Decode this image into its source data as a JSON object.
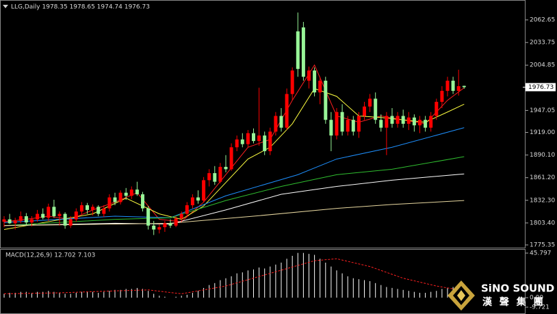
{
  "chart_data": [
    {
      "type": "candlestick",
      "title": "LLG,Daily  1978.35 1978.65 1974.74 1976.73",
      "up_color": "#ff0000",
      "down_color": "#98f598",
      "ylim": [
        1771,
        2088
      ],
      "yticks": [
        2062.65,
        2033.75,
        2004.85,
        1947.05,
        {
          "value": 1919,
          "label": "1919.00"
        },
        {
          "value": 1890.1,
          "label": "1890.10"
        },
        {
          "value": 1861.2,
          "label": "1861.20"
        },
        {
          "value": 1832.3,
          "label": "1832.30"
        },
        {
          "value": 1803.4,
          "label": "1803.40"
        },
        1775.35
      ],
      "last_price": 1976.73,
      "ohlc": {
        "open": [
          1805,
          1808,
          1803,
          1806,
          1812,
          1804,
          1808,
          1815,
          1810,
          1824,
          1812,
          1815,
          1800,
          1808,
          1818,
          1826,
          1820,
          1824,
          1815,
          1822,
          1836,
          1830,
          1842,
          1838,
          1846,
          1840,
          1822,
          1800,
          1795,
          1798,
          1803,
          1800,
          1809,
          1815,
          1826,
          1836,
          1832,
          1858,
          1867,
          1856,
          1875,
          1872,
          1900,
          1910,
          1904,
          1918,
          1908,
          1915,
          1895,
          1920,
          1940,
          1925,
          1968,
          2048,
          2053,
          1985,
          1998,
          1970,
          1985,
          1935,
          1915,
          1945,
          1920,
          1935,
          1920,
          1940,
          1952,
          1962,
          1935,
          1925,
          1940,
          1930,
          1940,
          1930,
          1938,
          1928,
          1935,
          1925,
          1940,
          1958,
          1972,
          1985,
          1972,
          1978.35
        ],
        "high": [
          1812,
          1815,
          1810,
          1818,
          1816,
          1812,
          1820,
          1822,
          1828,
          1833,
          1818,
          1817,
          1812,
          1822,
          1830,
          1829,
          1827,
          1826,
          1826,
          1840,
          1842,
          1845,
          1848,
          1850,
          1856,
          1843,
          1825,
          1806,
          1802,
          1806,
          1808,
          1812,
          1818,
          1830,
          1840,
          1845,
          1862,
          1872,
          1876,
          1880,
          1890,
          1905,
          1915,
          1918,
          1922,
          1924,
          1976,
          1920,
          1925,
          1945,
          1950,
          1975,
          2002,
          2072,
          2060,
          2003,
          2002,
          1990,
          1990,
          1945,
          1950,
          1955,
          1940,
          1940,
          1945,
          1958,
          1968,
          1970,
          1942,
          1945,
          1950,
          1945,
          1948,
          1945,
          1942,
          1940,
          1940,
          1945,
          1962,
          1978,
          1990,
          1990,
          1999,
          1978.65
        ],
        "low": [
          1798,
          1802,
          1795,
          1803,
          1800,
          1799,
          1805,
          1808,
          1806,
          1810,
          1800,
          1796,
          1797,
          1805,
          1814,
          1815,
          1813,
          1812,
          1811,
          1818,
          1826,
          1827,
          1833,
          1834,
          1838,
          1818,
          1795,
          1788,
          1790,
          1792,
          1797,
          1798,
          1805,
          1811,
          1822,
          1828,
          1830,
          1850,
          1852,
          1854,
          1868,
          1870,
          1895,
          1900,
          1900,
          1905,
          1902,
          1890,
          1890,
          1915,
          1920,
          1922,
          1960,
          1990,
          1985,
          1975,
          1965,
          1955,
          1930,
          1895,
          1910,
          1915,
          1915,
          1915,
          1912,
          1935,
          1945,
          1930,
          1920,
          1890,
          1925,
          1925,
          1925,
          1922,
          1920,
          1918,
          1920,
          1920,
          1935,
          1950,
          1965,
          1968,
          1966,
          1974.74
        ],
        "close": [
          1808,
          1803,
          1806,
          1812,
          1804,
          1808,
          1815,
          1810,
          1824,
          1812,
          1815,
          1800,
          1808,
          1818,
          1826,
          1820,
          1824,
          1815,
          1822,
          1836,
          1830,
          1842,
          1838,
          1846,
          1840,
          1822,
          1800,
          1795,
          1798,
          1803,
          1800,
          1809,
          1815,
          1826,
          1836,
          1832,
          1858,
          1867,
          1856,
          1875,
          1872,
          1900,
          1910,
          1904,
          1918,
          1908,
          1915,
          1895,
          1920,
          1940,
          1925,
          1968,
          1998,
          2000,
          1990,
          1998,
          1970,
          1985,
          1935,
          1915,
          1945,
          1920,
          1935,
          1920,
          1940,
          1952,
          1962,
          1935,
          1925,
          1940,
          1930,
          1940,
          1930,
          1938,
          1928,
          1935,
          1925,
          1940,
          1958,
          1972,
          1985,
          1972,
          1978,
          1976.73
        ]
      },
      "lines": [
        {
          "color": "#ff2020",
          "x": [
            0,
            4,
            8,
            12,
            16,
            20,
            24,
            28,
            32,
            36,
            40,
            44,
            48,
            52,
            56,
            60,
            64,
            68,
            72,
            76,
            80,
            83
          ],
          "values": [
            1805,
            1808,
            1812,
            1808,
            1820,
            1830,
            1842,
            1808,
            1805,
            1830,
            1865,
            1900,
            1910,
            1960,
            2005,
            1940,
            1932,
            1940,
            1935,
            1930,
            1960,
            1976
          ]
        },
        {
          "color": "#ffff40",
          "x": [
            0,
            8,
            16,
            22,
            28,
            32,
            36,
            40,
            44,
            48,
            52,
            56,
            60,
            64,
            68,
            72,
            76,
            80,
            83
          ],
          "values": [
            1795,
            1805,
            1815,
            1835,
            1815,
            1808,
            1825,
            1855,
            1885,
            1900,
            1930,
            1975,
            1965,
            1940,
            1938,
            1935,
            1932,
            1945,
            1955
          ]
        },
        {
          "color": "#1e90ff",
          "x": [
            0,
            20,
            30,
            40,
            53,
            60,
            70,
            83
          ],
          "values": [
            1804,
            1812,
            1810,
            1838,
            1865,
            1885,
            1900,
            1925
          ]
        },
        {
          "color": "#30c030",
          "x": [
            0,
            20,
            30,
            40,
            50,
            60,
            70,
            83
          ],
          "values": [
            1800,
            1808,
            1810,
            1832,
            1850,
            1865,
            1872,
            1888
          ]
        },
        {
          "color": "#ffffff",
          "x": [
            0,
            20,
            30,
            40,
            50,
            60,
            70,
            83
          ],
          "values": [
            1800,
            1803,
            1802,
            1820,
            1840,
            1850,
            1858,
            1866
          ]
        },
        {
          "color": "#e8d8a0",
          "x": [
            0,
            30,
            45,
            60,
            70,
            83
          ],
          "values": [
            1800,
            1803,
            1812,
            1822,
            1827,
            1832
          ]
        }
      ]
    },
    {
      "type": "macd",
      "title": "MACD(12,26,9) 12.702 7.103",
      "color": "#ffffff",
      "signal_color": "#ff2020",
      "ylim": [
        -16.75,
        50.0
      ],
      "yticks": [
        45.797,
        {
          "value": 0,
          "label": "0.00"
        },
        -9.721
      ],
      "values": [
        4,
        5,
        5,
        6,
        6,
        5,
        6,
        6,
        7,
        6,
        5,
        4,
        4,
        5,
        6,
        6,
        6,
        5,
        6,
        7,
        8,
        8,
        9,
        9,
        10,
        9,
        7,
        4,
        2,
        1,
        0,
        1,
        2,
        3,
        5,
        7,
        10,
        13,
        15,
        18,
        20,
        22,
        25,
        26,
        28,
        29,
        31,
        30,
        32,
        34,
        36,
        40,
        43,
        46,
        46,
        45,
        44,
        40,
        36,
        32,
        28,
        25,
        22,
        20,
        19,
        18,
        17,
        15,
        13,
        11,
        10,
        9,
        8,
        7,
        6,
        5,
        5,
        6,
        7,
        9,
        10,
        11,
        12,
        12.702
      ],
      "signal": {
        "x": [
          0,
          10,
          20,
          26,
          32,
          40,
          48,
          56,
          60,
          66,
          72,
          78,
          83
        ],
        "values": [
          4,
          5,
          7,
          8,
          4,
          12,
          25,
          38,
          40,
          32,
          20,
          12,
          7.103
        ]
      }
    }
  ],
  "logo": {
    "name": "SiNO SOUND",
    "chinese": "漢 聲 集 團"
  }
}
